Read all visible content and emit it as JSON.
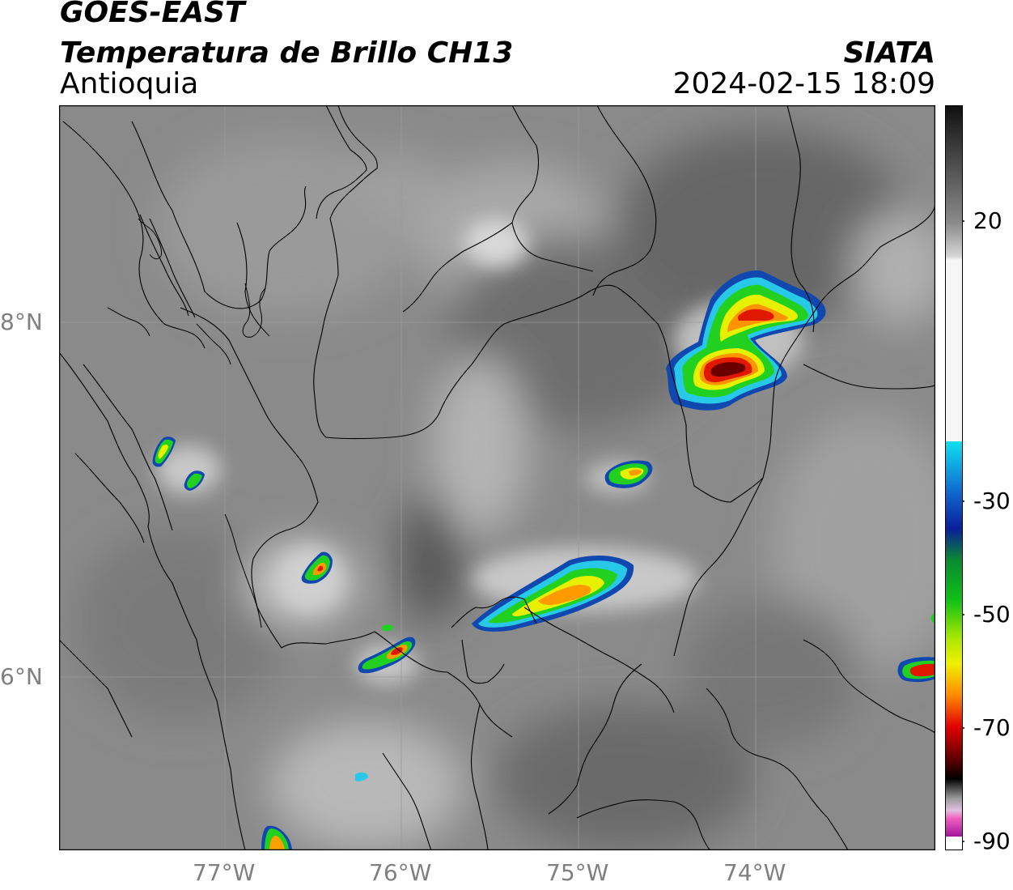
{
  "header": {
    "satellite": "GOES-EAST",
    "product": "Temperatura de Brillo CH13",
    "region": "Antioquia",
    "agency": "SIATA",
    "datetime": "2024-02-15 18:09"
  },
  "axes": {
    "lat_labels": [
      "8°N",
      "6°N"
    ],
    "lon_labels": [
      "77°W",
      "76°W",
      "75°W",
      "74°W"
    ]
  },
  "colorbar": {
    "tick_labels": [
      "20",
      "-30",
      "-50",
      "-70",
      "-90"
    ],
    "colors": {
      "warm_top": "#101010",
      "warm_bottom": "#f2f2f2",
      "cyan": "#10e0f0",
      "blue": "#0a1f9a",
      "green": "#10c018",
      "yellow": "#f0f000",
      "orange": "#ff8a00",
      "red": "#e00000",
      "darkred": "#600000",
      "magenta": "#c000c0"
    }
  },
  "storm_colors": {
    "edge": "#1040b0",
    "cyan": "#20c8e8",
    "green": "#20d020",
    "yellow": "#e8f000",
    "orange": "#ff9a00",
    "red": "#e21a00",
    "core": "#6a0000"
  }
}
